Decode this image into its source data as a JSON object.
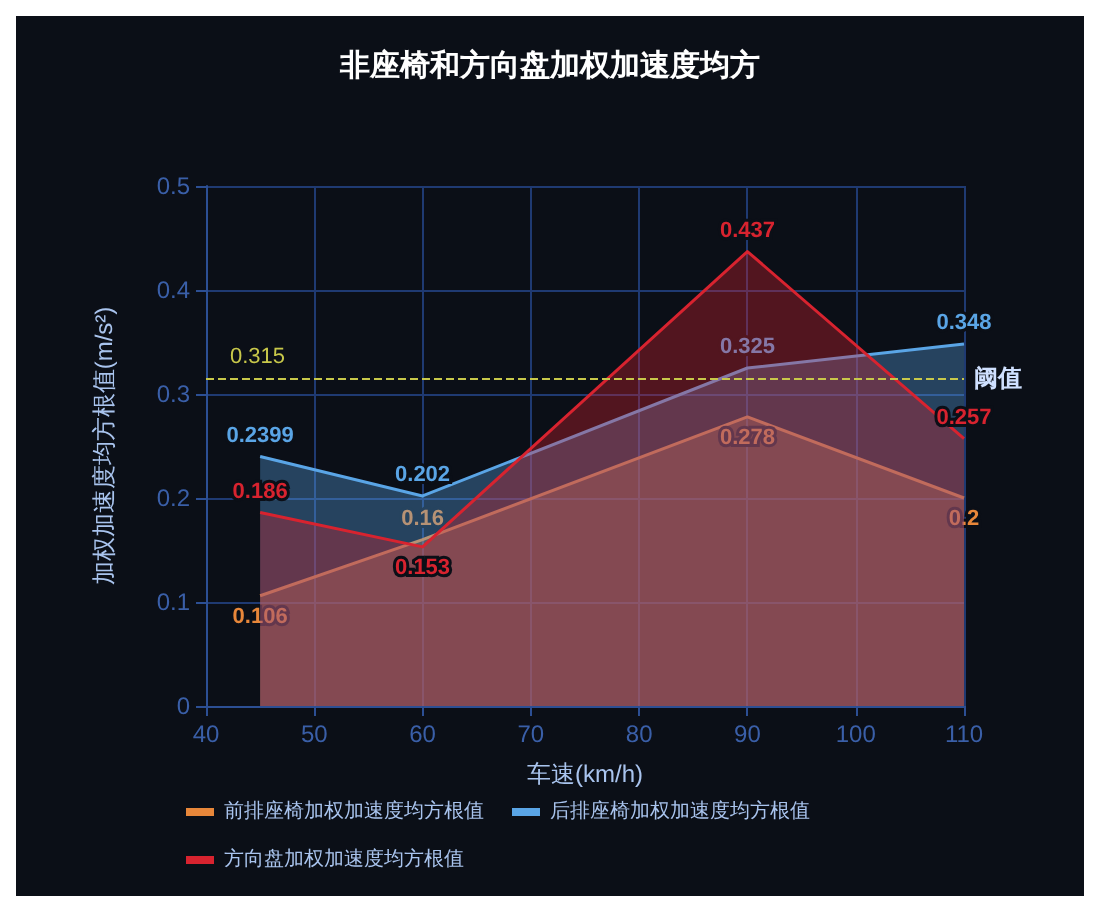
{
  "chart_data": {
    "type": "area",
    "title": "非座椅和方向盘加权加速度均方",
    "xlabel": "车速(km/h)",
    "ylabel": "加权加速度均方根值(m/s²)",
    "x": [
      45,
      60,
      90,
      110
    ],
    "series": [
      {
        "name": "前排座椅加权加速度均方根值",
        "color": "#e8873a",
        "values": [
          0.106,
          0.16,
          0.278,
          0.2
        ]
      },
      {
        "name": "后排座椅加权加速度均方根值",
        "color": "#5aa5e6",
        "values": [
          0.2399,
          0.202,
          0.325,
          0.348
        ]
      },
      {
        "name": "方向盘加权加速度均方根值",
        "color": "#d8232f",
        "values": [
          0.186,
          0.153,
          0.437,
          0.257
        ]
      }
    ],
    "xlim": [
      40,
      110
    ],
    "xticks": [
      40,
      50,
      60,
      70,
      80,
      90,
      100,
      110
    ],
    "ylim": [
      0,
      0.5
    ],
    "yticks": [
      0,
      0.1,
      0.2,
      0.3,
      0.4,
      0.5
    ],
    "grid": true,
    "legend": "bottom",
    "data_labels": true,
    "marker": "none",
    "ref_lines": [
      {
        "axis": "y",
        "value": 0.315,
        "label": "阈值",
        "color": "#c8c84a",
        "line_style": "dashed"
      }
    ],
    "annotations": [
      "0.315"
    ]
  }
}
